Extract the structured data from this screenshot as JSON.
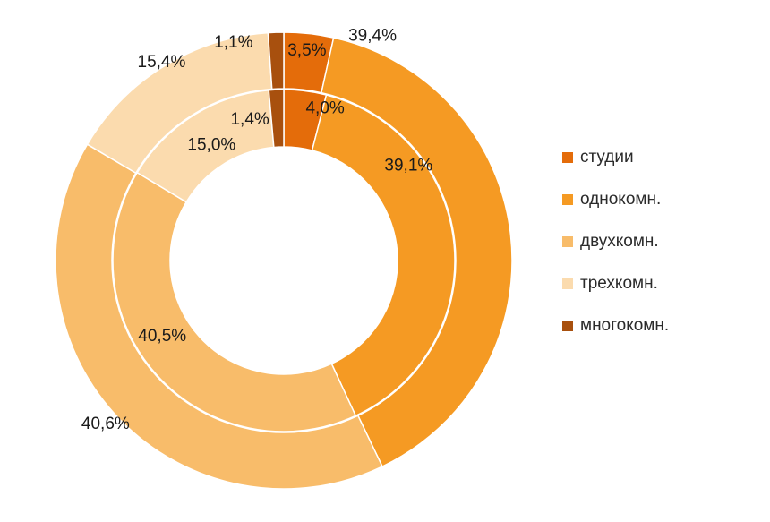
{
  "chart_data": {
    "type": "pie",
    "subtype": "doughnut",
    "categories": [
      "студии",
      "однокомн.",
      "двухкомн.",
      "трехкомн.",
      "многокомн."
    ],
    "colors": [
      "#E46C0A",
      "#F59A23",
      "#F8BC6A",
      "#FBDBAE",
      "#A8500E"
    ],
    "series": [
      {
        "ring": "outer",
        "values": [
          3.5,
          39.4,
          40.6,
          15.4,
          1.1
        ],
        "labels": [
          "3,5%",
          "39,4%",
          "40,6%",
          "15,4%",
          "1,1%"
        ]
      },
      {
        "ring": "inner",
        "values": [
          4.0,
          39.1,
          40.5,
          15.0,
          1.4
        ],
        "labels": [
          "4,0%",
          "39,1%",
          "40,5%",
          "15,0%",
          "1,4%"
        ]
      }
    ],
    "legend_position": "right",
    "title": "",
    "xlabel": "",
    "ylabel": ""
  }
}
